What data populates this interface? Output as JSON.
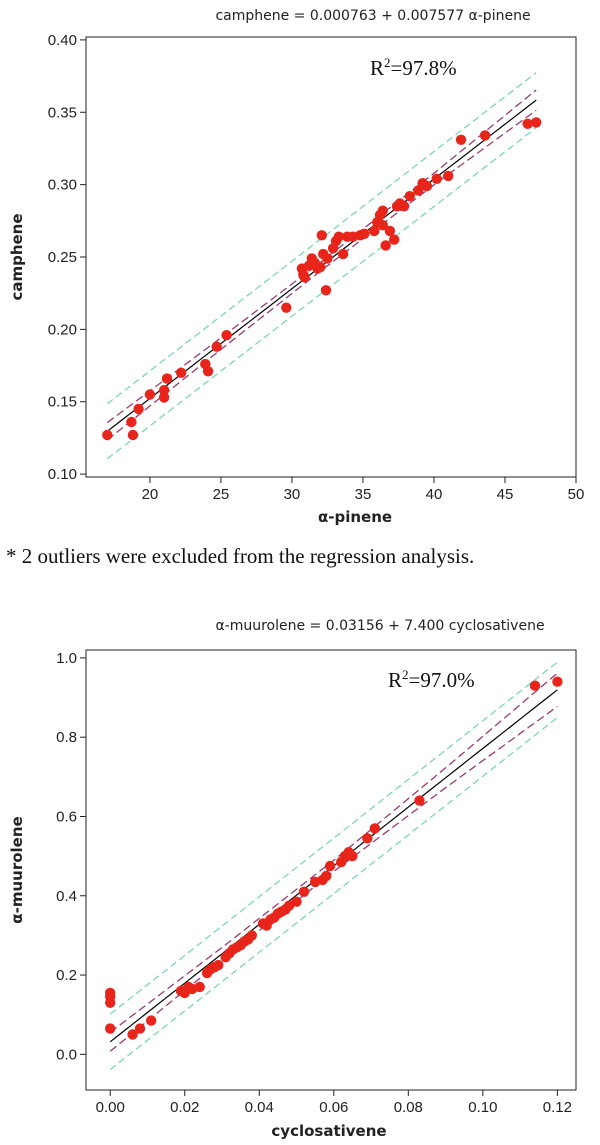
{
  "note": "* 2 outliers were excluded from the regression analysis.",
  "chart_data": [
    {
      "type": "scatter",
      "equation": "camphene = 0.000763 + 0.007577 α-pinene",
      "r2_label": "R",
      "r2_sup": "2",
      "r2_value": "=97.8%",
      "xlabel": "α-pinene",
      "ylabel": "camphene",
      "xlim": [
        15.5,
        50
      ],
      "ylim": [
        0.098,
        0.402
      ],
      "xticks": [
        20,
        25,
        30,
        35,
        40,
        45,
        50
      ],
      "yticks": [
        0.1,
        0.15,
        0.2,
        0.25,
        0.3,
        0.35,
        0.4
      ],
      "xtick_labels": [
        "20",
        "25",
        "30",
        "35",
        "40",
        "45",
        "50"
      ],
      "ytick_labels": [
        "0.10",
        "0.15",
        "0.20",
        "0.25",
        "0.30",
        "0.35",
        "0.40"
      ],
      "fit": {
        "intercept": 0.000763,
        "slope": 0.007577,
        "x_range": [
          17,
          47.2
        ]
      },
      "ci": {
        "x": [
          17,
          25,
          32,
          40,
          47.2
        ],
        "halfwidth": [
          0.006,
          0.004,
          0.003,
          0.004,
          0.007
        ]
      },
      "pi_halfwidth": 0.019,
      "colors": {
        "points": "#e8251b",
        "fit": "#000000",
        "ci": "#9b3a73",
        "pi": "#7fd6b2"
      },
      "series": [
        {
          "x": [
            17.0,
            18.7,
            18.8,
            19.2,
            20.0,
            21.0,
            21.0,
            21.2,
            22.2,
            23.9,
            24.1,
            24.7,
            25.4,
            29.6,
            30.7,
            30.8,
            30.9,
            31.2,
            31.4,
            31.6,
            31.8,
            32.0,
            32.1,
            32.2,
            32.4,
            32.5,
            32.9,
            33.1,
            33.3,
            33.6,
            33.9,
            34.3,
            34.8,
            35.1,
            35.8,
            36.0,
            36.2,
            36.4,
            36.4,
            36.6,
            36.9,
            37.2,
            37.4,
            37.6,
            37.9,
            38.3,
            38.9,
            39.2,
            39.5,
            40.2,
            41.0,
            41.9,
            43.6,
            46.6,
            47.2
          ],
          "y": [
            0.127,
            0.136,
            0.127,
            0.145,
            0.155,
            0.153,
            0.158,
            0.166,
            0.17,
            0.176,
            0.171,
            0.188,
            0.196,
            0.215,
            0.242,
            0.238,
            0.236,
            0.244,
            0.249,
            0.246,
            0.242,
            0.243,
            0.265,
            0.252,
            0.227,
            0.249,
            0.256,
            0.261,
            0.264,
            0.252,
            0.264,
            0.264,
            0.265,
            0.266,
            0.268,
            0.274,
            0.279,
            0.282,
            0.272,
            0.258,
            0.268,
            0.262,
            0.285,
            0.287,
            0.285,
            0.292,
            0.296,
            0.301,
            0.299,
            0.304,
            0.306,
            0.331,
            0.334,
            0.342,
            0.343
          ]
        }
      ]
    },
    {
      "type": "scatter",
      "equation": "α-muurolene = 0.03156 + 7.400 cyclosativene",
      "r2_label": "R",
      "r2_sup": "2",
      "r2_value": "=97.0%",
      "xlabel": "cyclosativene",
      "ylabel": "α-muurolene",
      "xlim": [
        -0.0065,
        0.125
      ],
      "ylim": [
        -0.09,
        1.02
      ],
      "xticks": [
        0.0,
        0.02,
        0.04,
        0.06,
        0.08,
        0.1,
        0.12
      ],
      "yticks": [
        0.0,
        0.2,
        0.4,
        0.6,
        0.8,
        1.0
      ],
      "xtick_labels": [
        "0.00",
        "0.02",
        "0.04",
        "0.06",
        "0.08",
        "0.10",
        "0.12"
      ],
      "ytick_labels": [
        "0.0",
        "0.2",
        "0.4",
        "0.6",
        "0.8",
        "1.0"
      ],
      "fit": {
        "intercept": 0.03156,
        "slope": 7.4,
        "x_range": [
          0.0,
          0.12
        ]
      },
      "ci": {
        "x": [
          0.0,
          0.03,
          0.06,
          0.09,
          0.12
        ],
        "halfwidth": [
          0.024,
          0.016,
          0.014,
          0.025,
          0.042
        ]
      },
      "pi_halfwidth": 0.07,
      "colors": {
        "points": "#e8251b",
        "fit": "#000000",
        "ci": "#9b3a73",
        "pi": "#7fd6b2"
      },
      "series": [
        {
          "x": [
            0.0,
            0.0,
            0.0,
            0.0,
            0.006,
            0.008,
            0.011,
            0.019,
            0.02,
            0.021,
            0.022,
            0.024,
            0.026,
            0.027,
            0.028,
            0.029,
            0.031,
            0.032,
            0.033,
            0.034,
            0.035,
            0.036,
            0.037,
            0.038,
            0.041,
            0.042,
            0.043,
            0.044,
            0.045,
            0.046,
            0.047,
            0.048,
            0.05,
            0.052,
            0.055,
            0.057,
            0.058,
            0.059,
            0.062,
            0.063,
            0.064,
            0.065,
            0.069,
            0.071,
            0.083,
            0.114,
            0.12
          ],
          "y": [
            0.155,
            0.145,
            0.13,
            0.065,
            0.05,
            0.065,
            0.085,
            0.16,
            0.155,
            0.17,
            0.165,
            0.17,
            0.205,
            0.215,
            0.22,
            0.225,
            0.245,
            0.255,
            0.265,
            0.27,
            0.275,
            0.285,
            0.29,
            0.3,
            0.33,
            0.325,
            0.34,
            0.345,
            0.355,
            0.36,
            0.365,
            0.375,
            0.385,
            0.41,
            0.435,
            0.44,
            0.45,
            0.475,
            0.485,
            0.5,
            0.51,
            0.5,
            0.545,
            0.57,
            0.64,
            0.93,
            0.94
          ]
        }
      ]
    }
  ]
}
